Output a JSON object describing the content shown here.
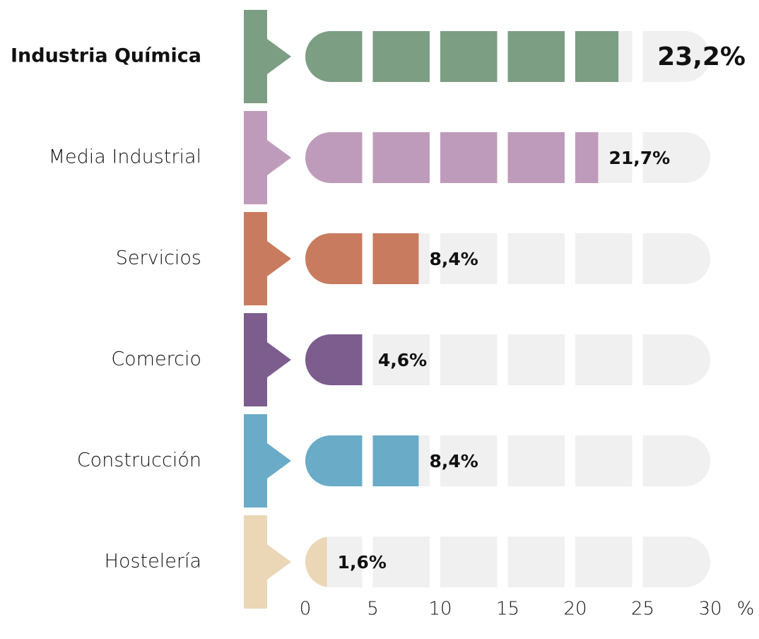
{
  "chart_data": {
    "type": "segmented-bar",
    "categories": [
      "Industria Química",
      "Media Industrial",
      "Servicios",
      "Comercio",
      "Construcción",
      "Hostelería"
    ],
    "values": [
      23.2,
      21.7,
      8.4,
      4.6,
      8.4,
      1.6
    ],
    "value_labels": [
      "23,2%",
      "21,7%",
      "8,4%",
      "4,6%",
      "8,4%",
      "1,6%"
    ],
    "colors": [
      "#7c9e83",
      "#bf9bbb",
      "#c97b5f",
      "#7d5c8e",
      "#6aabc8",
      "#ebd6b6"
    ],
    "xlim": [
      0,
      30
    ],
    "xticks": [
      0,
      5,
      10,
      15,
      20,
      25,
      30
    ],
    "xlabel": "%",
    "highlight": 0,
    "track_color": "#f0f0f0"
  }
}
